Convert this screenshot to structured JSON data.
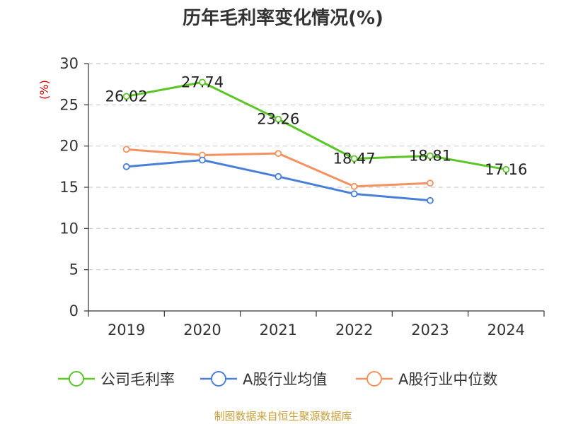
{
  "chart_data": {
    "type": "line",
    "title": "历年毛利率变化情况(%)",
    "unit_label": "(%)",
    "categories": [
      "2019",
      "2020",
      "2021",
      "2022",
      "2023",
      "2024"
    ],
    "ylim": [
      0,
      30
    ],
    "yticks": [
      0,
      5,
      10,
      15,
      20,
      25,
      30
    ],
    "grid": true,
    "legend_position": "bottom",
    "series": [
      {
        "name": "公司毛利率",
        "color": "#5cc527",
        "values": [
          26.02,
          27.74,
          23.26,
          18.47,
          18.81,
          17.16
        ],
        "labels": [
          "26.02",
          "27.74",
          "23.26",
          "18.47",
          "18.81",
          "17.16"
        ]
      },
      {
        "name": "A股行业均值",
        "color": "#4a7fd8",
        "values": [
          17.5,
          18.3,
          16.3,
          14.2,
          13.4,
          null
        ]
      },
      {
        "name": "A股行业中位数",
        "color": "#f39260",
        "values": [
          19.6,
          18.9,
          19.1,
          15.1,
          15.5,
          null
        ]
      }
    ]
  },
  "source": "制图数据来自恒生聚源数据库"
}
